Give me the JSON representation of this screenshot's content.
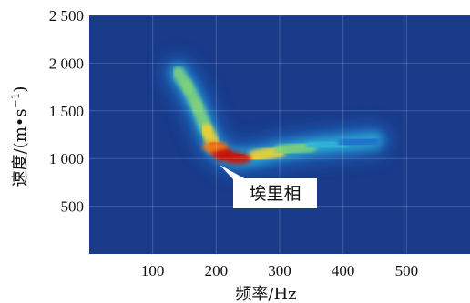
{
  "chart_data": {
    "type": "heatmap",
    "title": "",
    "xlabel": "频率/Hz",
    "ylabel_main": "速度/(m•s",
    "ylabel_sup": "−1",
    "ylabel_close": ")",
    "xlim": [
      0,
      600
    ],
    "ylim": [
      0,
      2500
    ],
    "xticks": [
      {
        "value": 100,
        "label": "100"
      },
      {
        "value": 200,
        "label": "200"
      },
      {
        "value": 300,
        "label": "300"
      },
      {
        "value": 400,
        "label": "400"
      },
      {
        "value": 500,
        "label": "500"
      }
    ],
    "yticks": [
      {
        "value": 500,
        "label": "500"
      },
      {
        "value": 1000,
        "label": "1 000"
      },
      {
        "value": 1500,
        "label": "1 500"
      },
      {
        "value": 2000,
        "label": "2 000"
      },
      {
        "value": 2500,
        "label": "2 500"
      }
    ],
    "grid": true,
    "colormap": [
      "#1b2a8f",
      "#1e6fc9",
      "#2fb5d8",
      "#7fd17a",
      "#f2d22e",
      "#f07a1c",
      "#c3120f"
    ],
    "background_color": "#1a3a8a",
    "ridge": [
      {
        "x": 140,
        "y": 1900,
        "intensity": 0.55
      },
      {
        "x": 155,
        "y": 1750,
        "intensity": 0.5
      },
      {
        "x": 170,
        "y": 1550,
        "intensity": 0.5
      },
      {
        "x": 185,
        "y": 1300,
        "intensity": 0.6
      },
      {
        "x": 198,
        "y": 1120,
        "intensity": 0.85
      },
      {
        "x": 215,
        "y": 1030,
        "intensity": 1.0
      },
      {
        "x": 235,
        "y": 1000,
        "intensity": 0.95
      },
      {
        "x": 260,
        "y": 1020,
        "intensity": 0.7
      },
      {
        "x": 300,
        "y": 1080,
        "intensity": 0.55
      },
      {
        "x": 350,
        "y": 1130,
        "intensity": 0.45
      },
      {
        "x": 400,
        "y": 1160,
        "intensity": 0.3
      },
      {
        "x": 450,
        "y": 1190,
        "intensity": 0.18
      }
    ],
    "annotation": {
      "text": "埃里相",
      "x": 225,
      "y": 1000
    }
  }
}
